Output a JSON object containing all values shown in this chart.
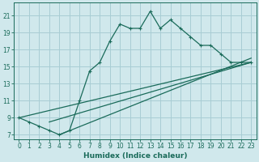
{
  "xlabel": "Humidex (Indice chaleur)",
  "bg_color": "#d0e8ec",
  "grid_color": "#a8cdd4",
  "line_color": "#1a6b5a",
  "xlim": [
    -0.5,
    23.5
  ],
  "ylim": [
    6.5,
    22.5
  ],
  "xticks": [
    0,
    1,
    2,
    3,
    4,
    5,
    6,
    7,
    8,
    9,
    10,
    11,
    12,
    13,
    14,
    15,
    16,
    17,
    18,
    19,
    20,
    21,
    22,
    23
  ],
  "yticks": [
    7,
    9,
    11,
    13,
    15,
    17,
    19,
    21
  ],
  "series": [
    [
      0,
      9
    ],
    [
      1,
      8.5
    ],
    [
      2,
      8
    ],
    [
      3,
      7.5
    ],
    [
      4,
      7
    ],
    [
      5,
      7.5
    ],
    [
      6,
      11
    ],
    [
      7,
      14.5
    ],
    [
      8,
      15.5
    ],
    [
      9,
      18
    ],
    [
      10,
      20
    ],
    [
      11,
      19.5
    ],
    [
      12,
      19.5
    ],
    [
      13,
      21.5
    ],
    [
      14,
      19.5
    ],
    [
      15,
      20.5
    ],
    [
      16,
      19.5
    ],
    [
      17,
      18.5
    ],
    [
      18,
      17.5
    ],
    [
      19,
      17.5
    ],
    [
      20,
      16.5
    ],
    [
      21,
      15.5
    ],
    [
      22,
      15.5
    ],
    [
      23,
      15.5
    ]
  ],
  "diag_lines": [
    [
      [
        0,
        9
      ],
      [
        23,
        15.5
      ]
    ],
    [
      [
        3,
        8.5
      ],
      [
        23,
        15.5
      ]
    ],
    [
      [
        4,
        7
      ],
      [
        23,
        16.0
      ]
    ]
  ]
}
